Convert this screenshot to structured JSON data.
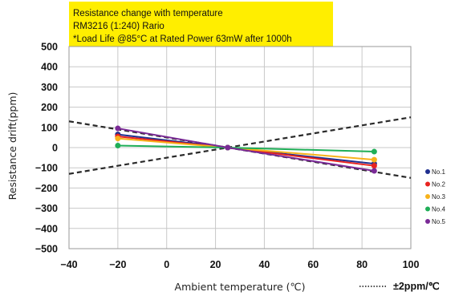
{
  "chart_data": {
    "type": "line",
    "title_lines": [
      "Resistance change with temperature",
      "RM3216 (1:240) Rario",
      "*Load Life @85°C  at Rated Power 63mW after 1000h"
    ],
    "xlabel": "Ambient temperature (℃)",
    "ylabel": "Resistance drift(ppm)",
    "xlim": [
      -40,
      100
    ],
    "ylim": [
      -500,
      500
    ],
    "x_ticks": [
      -40,
      -20,
      0,
      20,
      40,
      60,
      80,
      100
    ],
    "y_ticks": [
      500,
      400,
      300,
      200,
      100,
      0,
      -100,
      -200,
      -300,
      -400,
      -500
    ],
    "x_tick_labels": [
      "−40",
      "−20",
      "0",
      "20",
      "40",
      "60",
      "80",
      "100"
    ],
    "y_tick_labels": [
      "500",
      "400",
      "300",
      "200",
      "100",
      "0",
      "−100",
      "−200",
      "−300",
      "−400",
      "−500"
    ],
    "grid": true,
    "legend_position": "right",
    "x": [
      -20,
      25,
      85
    ],
    "series": [
      {
        "name": "No.1",
        "color": "#1f2f8f",
        "values": [
          65,
          0,
          -80
        ]
      },
      {
        "name": "No.2",
        "color": "#e8231f",
        "values": [
          55,
          0,
          -90
        ]
      },
      {
        "name": "No.3",
        "color": "#f7b21b",
        "values": [
          45,
          0,
          -60
        ]
      },
      {
        "name": "No.4",
        "color": "#1fae57",
        "values": [
          10,
          0,
          -20
        ]
      },
      {
        "name": "No.5",
        "color": "#7a2a96",
        "values": [
          95,
          0,
          -115
        ]
      }
    ],
    "reference_lines": {
      "label": "±2ppm/℃",
      "slope_ppm_per_c": 2,
      "center_x": 25,
      "center_y": 0
    }
  }
}
